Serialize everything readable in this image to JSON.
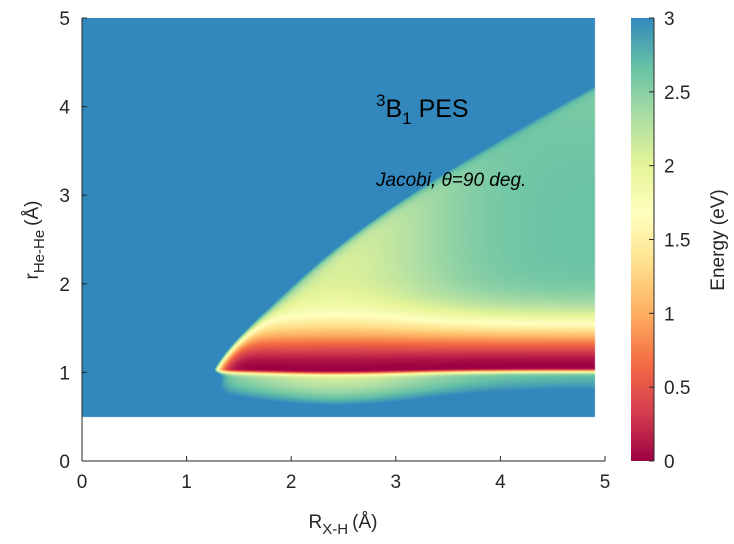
{
  "chart_data": {
    "type": "heatmap",
    "xlabel": "R",
    "xlabel_sub": "X-H",
    "xlabel_unit": "(Å)",
    "ylabel": "r",
    "ylabel_sub": "He-He",
    "ylabel_unit": "(Å)",
    "xlim": [
      0,
      5
    ],
    "ylim": [
      0,
      5
    ],
    "x_ticks": [
      "0",
      "1",
      "2",
      "3",
      "4",
      "5"
    ],
    "y_ticks": [
      "0",
      "1",
      "2",
      "3",
      "4",
      "5"
    ],
    "data_extent": {
      "x": [
        0,
        4.9
      ],
      "y": [
        0.5,
        5
      ]
    },
    "colorbar": {
      "label": "Energy (eV)",
      "range": [
        0,
        3
      ],
      "ticks": [
        "0",
        "0.5",
        "1",
        "1.5",
        "2",
        "2.5",
        "3"
      ],
      "colormap": [
        "#9e0142",
        "#d53e4f",
        "#f46d43",
        "#fdae61",
        "#fee08b",
        "#ffffbf",
        "#e6f598",
        "#abdda4",
        "#66c2a5",
        "#3288bd"
      ]
    },
    "annotation": {
      "sup": "3",
      "main": "B",
      "sub": "1",
      "rest": " PES",
      "label_prefix": "Jacobi, ",
      "label_theta": "θ",
      "label_suffix": "=90 deg."
    }
  }
}
